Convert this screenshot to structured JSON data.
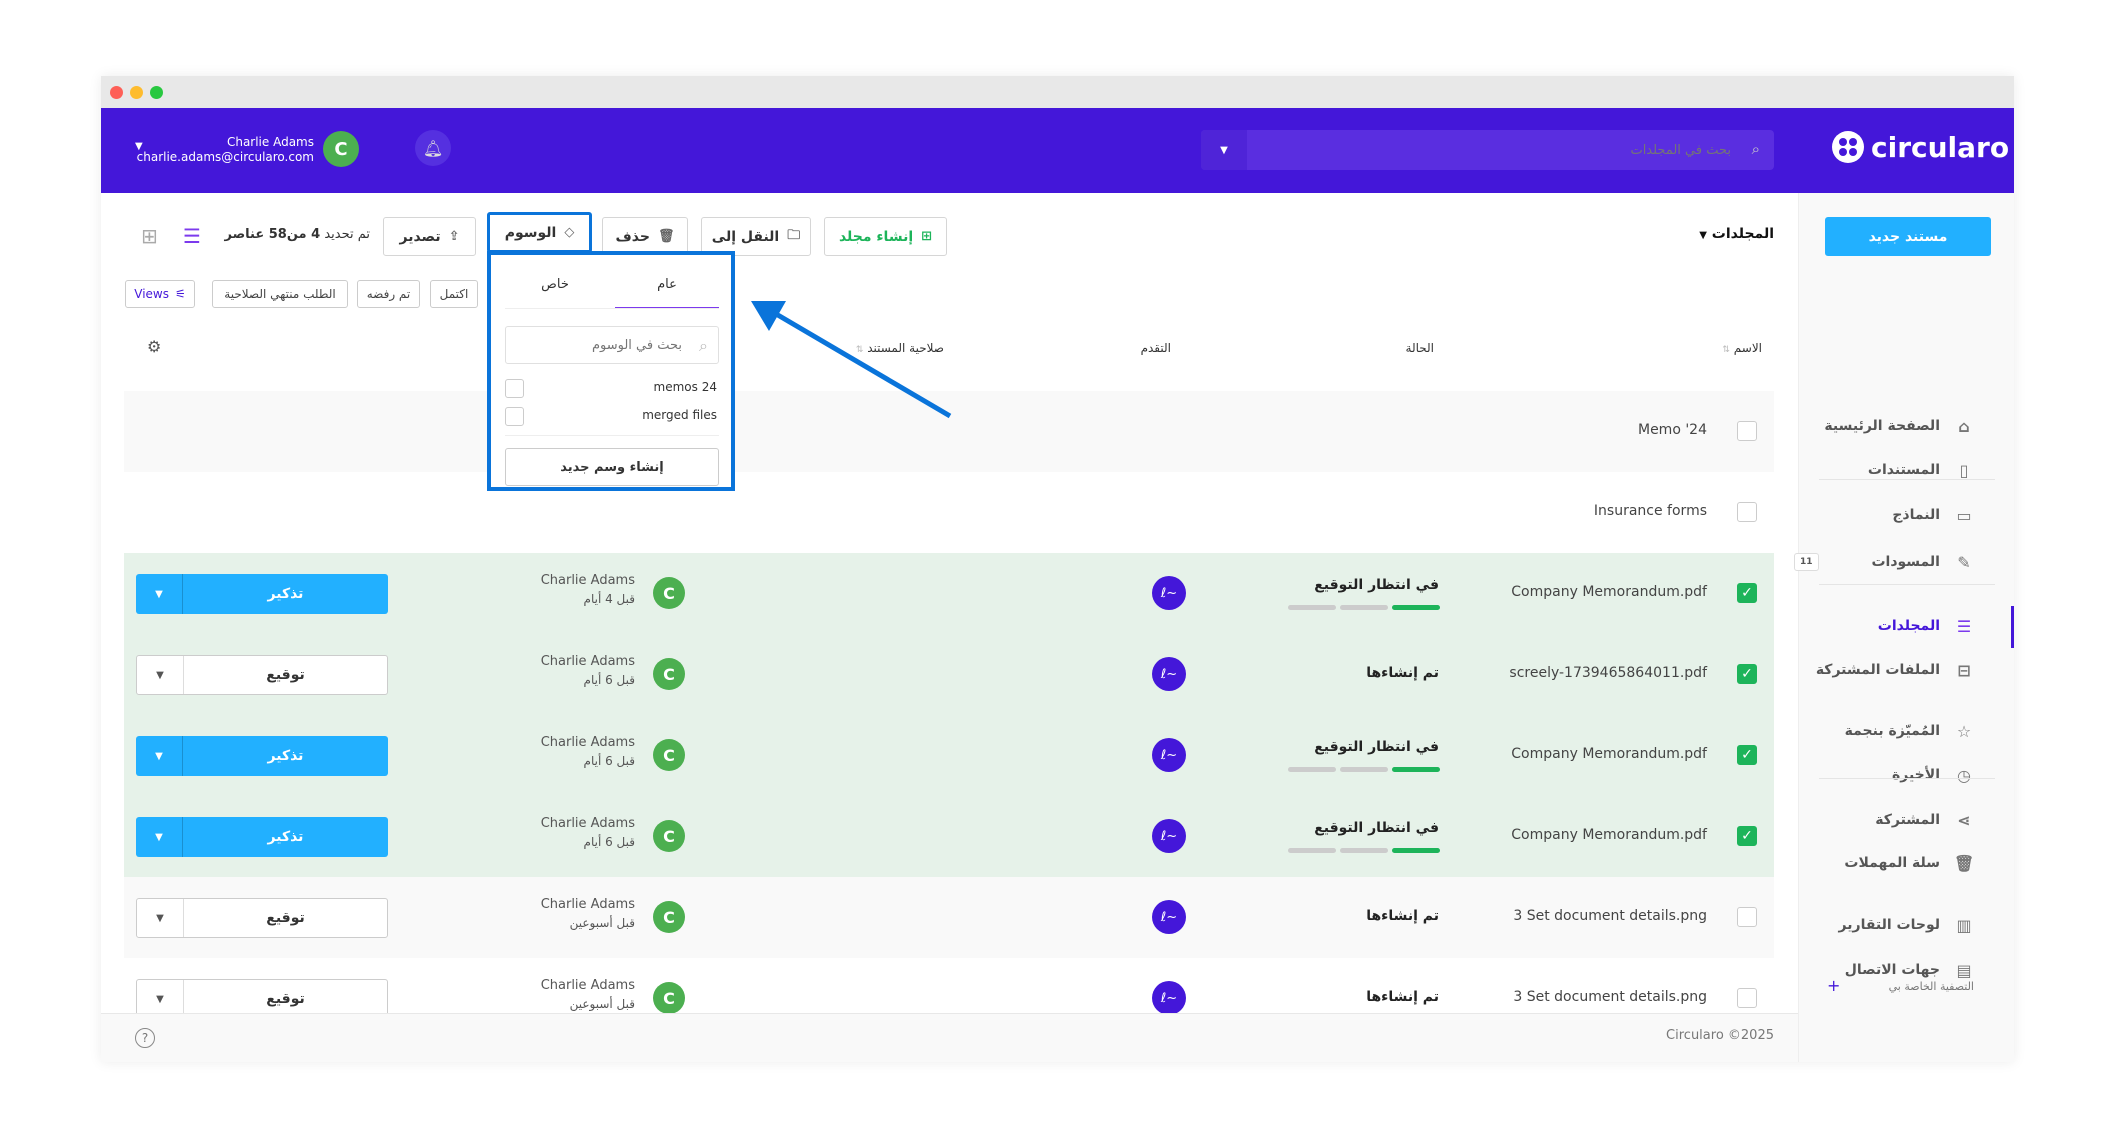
{
  "colors": {
    "brand": "#4417d9",
    "primary_button": "#22b0ff",
    "success": "#1db45a",
    "selected_row": "#e6f2e9",
    "highlight": "#0a74da"
  },
  "header": {
    "logo": "circularo",
    "search_placeholder": "بحث في المجلدات",
    "user_name": "Charlie Adams",
    "user_email": "charlie.adams@circularo.com",
    "avatar_letter": "C"
  },
  "sidebar": {
    "new_document": "مستند جديد",
    "items": [
      {
        "label": "الصفحة الرئيسية",
        "icon": "home-icon"
      },
      {
        "label": "المستندات",
        "icon": "document-icon"
      },
      {
        "label": "النماذج",
        "icon": "clipboard-icon"
      },
      {
        "label": "المسودات",
        "icon": "edit-icon",
        "badge": "11"
      },
      {
        "label": "المجلدات",
        "icon": "folder-stack-icon",
        "active": true
      },
      {
        "label": "الملفات المشتركة",
        "icon": "shared-folder-icon"
      },
      {
        "label": "المُميّزة بنجمة",
        "icon": "star-icon"
      },
      {
        "label": "الأخيرة",
        "icon": "clock-icon"
      },
      {
        "label": "المشتركة",
        "icon": "share-icon"
      },
      {
        "label": "سلة المهملات",
        "icon": "trash-icon"
      },
      {
        "label": "لوحات التقارير",
        "icon": "chart-icon"
      },
      {
        "label": "جهات الاتصال",
        "icon": "contact-card-icon"
      }
    ],
    "my_filters": "التصفية الخاصة بي"
  },
  "toolbar": {
    "breadcrumb": "المجلدات",
    "create_folder": "إنشاء مجلد",
    "move_to": "النقل إلى",
    "delete": "حذف",
    "tags": "الوسوم",
    "export": "تصدير",
    "selection": "تم تحديد",
    "selection_count": "4 من58 عناصر"
  },
  "filters": {
    "completed": "اكتمل",
    "rejected": "تم رفضه",
    "expired": "الطلب منتهي الصلاحية",
    "views": "Views"
  },
  "columns": {
    "name": "الاسم",
    "status": "الحالة",
    "progress": "التقدم",
    "expiry": "صلاحية المستند"
  },
  "tags_dropdown": {
    "tab_public": "عام",
    "tab_private": "خاص",
    "search_placeholder": "بحث في الوسوم",
    "items": [
      "memos 24",
      "merged files"
    ],
    "create": "إنشاء وسم جديد"
  },
  "folders": [
    {
      "name": "Memo '24"
    },
    {
      "name": "Insurance forms"
    }
  ],
  "rows": [
    {
      "name": "Company Memorandum.pdf",
      "checked": true,
      "status": "في انتظار التوقيع",
      "progress_steps": [
        1,
        0,
        0
      ],
      "user": "Charlie Adams",
      "time": "قبل 4 أيام",
      "action": "تذكير",
      "style": "blue"
    },
    {
      "name": "screely-1739465864011.pdf",
      "checked": true,
      "status": "تم إنشاءها",
      "progress_steps": null,
      "user": "Charlie Adams",
      "time": "قبل 6 أيام",
      "action": "توقيع",
      "style": "white"
    },
    {
      "name": "Company Memorandum.pdf",
      "checked": true,
      "status": "في انتظار التوقيع",
      "progress_steps": [
        1,
        0,
        0
      ],
      "user": "Charlie Adams",
      "time": "قبل 6 أيام",
      "action": "تذكير",
      "style": "blue"
    },
    {
      "name": "Company Memorandum.pdf",
      "checked": true,
      "status": "في انتظار التوقيع",
      "progress_steps": [
        1,
        0,
        0
      ],
      "user": "Charlie Adams",
      "time": "قبل 6 أيام",
      "action": "تذكير",
      "style": "blue"
    },
    {
      "name": "3 Set document details.png",
      "checked": false,
      "status": "تم إنشاءها",
      "progress_steps": null,
      "user": "Charlie Adams",
      "time": "قبل أسبوعين",
      "action": "توقيع",
      "style": "white"
    },
    {
      "name": "3 Set document details.png",
      "checked": false,
      "status": "تم إنشاءها",
      "progress_steps": null,
      "user": "Charlie Adams",
      "time": "قبل أسبوعين",
      "action": "توقيع",
      "style": "white"
    }
  ],
  "footer": {
    "copyright": "Circularo ©2025"
  }
}
